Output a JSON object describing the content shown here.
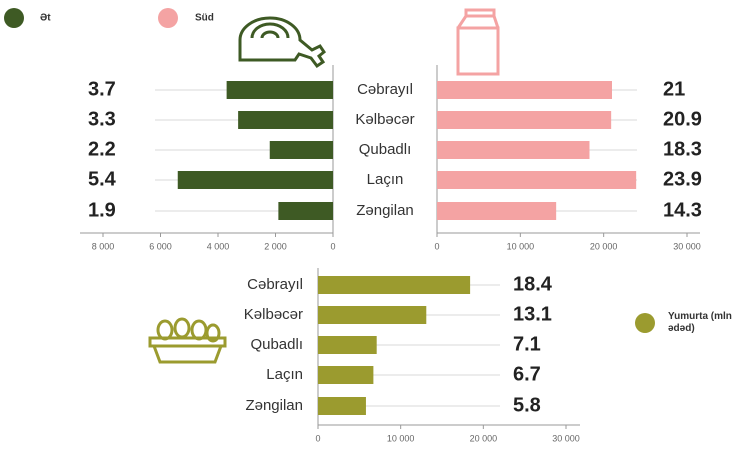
{
  "chart_data": [
    {
      "type": "bar",
      "orientation": "horizontal",
      "reversed": true,
      "categories": [
        "Cəbrayıl",
        "Kəlbəcər",
        "Qubadlı",
        "Laçın",
        "Zəngilan"
      ],
      "series": [
        {
          "name": "Ət",
          "color": "#3e5a24",
          "values": [
            3700,
            3300,
            2200,
            5400,
            1900
          ],
          "value_labels": [
            "3.7",
            "3.3",
            "2.2",
            "5.4",
            "1.9"
          ]
        }
      ],
      "xlim": [
        0,
        8000
      ],
      "xticks": [
        {
          "value": 8000,
          "label": "8 000"
        },
        {
          "value": 6000,
          "label": "6 000"
        },
        {
          "value": 4000,
          "label": "4 000"
        },
        {
          "value": 2000,
          "label": "2 000"
        },
        0
      ],
      "legend": "top-left"
    },
    {
      "type": "bar",
      "orientation": "horizontal",
      "reversed": false,
      "series": [
        {
          "name": "Süd",
          "color": "#f4a3a3",
          "values": [
            21000,
            20900,
            18300,
            23900,
            14300
          ],
          "value_labels": [
            "21",
            "20.9",
            "18.3",
            "23.9",
            "14.3"
          ]
        }
      ],
      "xlim": [
        0,
        30000
      ],
      "xticks": [
        0,
        {
          "value": 10000,
          "label": "10 000"
        },
        {
          "value": 20000,
          "label": "20 000"
        },
        {
          "value": 30000,
          "label": "30 000"
        }
      ],
      "legend": "top-left"
    },
    {
      "type": "bar",
      "orientation": "horizontal",
      "reversed": false,
      "categories": [
        "Cəbrayıl",
        "Kəlbəcər",
        "Qubadlı",
        "Laçın",
        "Zəngilan"
      ],
      "series": [
        {
          "name": "Yumurta (mln ədəd)",
          "color": "#9b9b2f",
          "values": [
            18400,
            13100,
            7100,
            6700,
            5800
          ],
          "value_labels": [
            "18.4",
            "13.1",
            "7.1",
            "6.7",
            "5.8"
          ]
        }
      ],
      "xlim": [
        0,
        30000
      ],
      "xticks": [
        0,
        {
          "value": 10000,
          "label": "10 000"
        },
        {
          "value": 20000,
          "label": "20 000"
        },
        {
          "value": 30000,
          "label": "30 000"
        }
      ],
      "legend": "right"
    }
  ]
}
